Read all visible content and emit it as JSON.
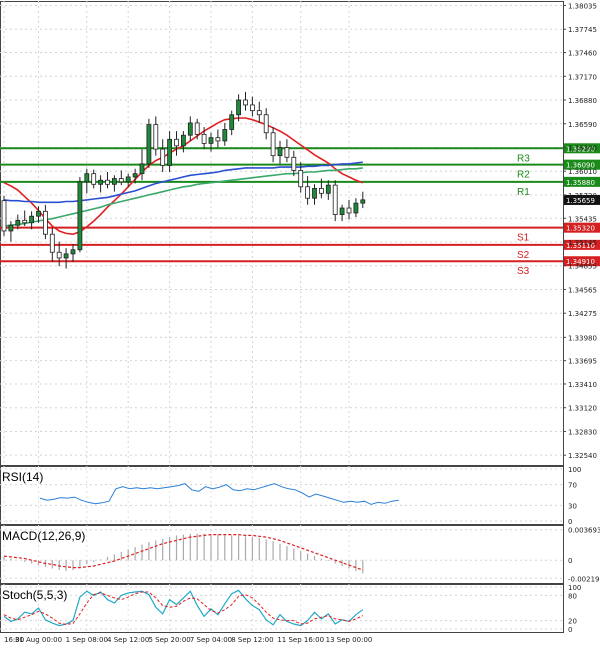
{
  "chart_data": {
    "type": "candlestick",
    "price_axis": {
      "ticks": [
        "1.38035",
        "1.37745",
        "1.37460",
        "1.37170",
        "1.36880",
        "1.36590",
        "1.36300",
        "1.36010",
        "1.35720",
        "1.35435",
        "1.35145",
        "1.34855",
        "1.34565",
        "1.34275",
        "1.33980",
        "1.33695",
        "1.33410",
        "1.33120",
        "1.32830",
        "1.32540"
      ],
      "range": [
        1.3242,
        1.3809
      ]
    },
    "current_price": "1.35659",
    "levels": [
      {
        "name": "R3",
        "price": 1.3629,
        "label": "1.36290",
        "color": "#1a8a1a"
      },
      {
        "name": "R2",
        "price": 1.3609,
        "label": "1.36090",
        "color": "#1a8a1a"
      },
      {
        "name": "R1",
        "price": 1.3588,
        "label": "1.35880",
        "color": "#1a8a1a"
      },
      {
        "name": "S1",
        "price": 1.3532,
        "label": "1.35320",
        "color": "#d42020"
      },
      {
        "name": "S2",
        "price": 1.3511,
        "label": "1.35110",
        "color": "#d42020"
      },
      {
        "name": "S3",
        "price": 1.3491,
        "label": "1.34910",
        "color": "#d42020"
      }
    ],
    "x_ticks": [
      "16:00",
      "31 Aug 00:00",
      "1 Sep 08:00",
      "4 Sep 12:00",
      "5 Sep 20:00",
      "7 Sep 04:00",
      "8 Sep 12:00",
      "11 Sep 16:00",
      "13 Sep 00:00"
    ],
    "candles": [
      [
        1.3565,
        1.3571,
        1.3522,
        1.3528
      ],
      [
        1.3528,
        1.354,
        1.3515,
        1.3535
      ],
      [
        1.3535,
        1.3548,
        1.353,
        1.3541
      ],
      [
        1.3541,
        1.3553,
        1.3534,
        1.3538
      ],
      [
        1.3538,
        1.3552,
        1.353,
        1.3546
      ],
      [
        1.3546,
        1.3558,
        1.3538,
        1.3552
      ],
      [
        1.3552,
        1.356,
        1.3518,
        1.3524
      ],
      [
        1.3524,
        1.3532,
        1.349,
        1.3502
      ],
      [
        1.3502,
        1.3515,
        1.3485,
        1.3495
      ],
      [
        1.3495,
        1.3507,
        1.3482,
        1.35
      ],
      [
        1.35,
        1.3512,
        1.349,
        1.3505
      ],
      [
        1.3505,
        1.3594,
        1.3502,
        1.3588
      ],
      [
        1.3588,
        1.3604,
        1.3574,
        1.3598
      ],
      [
        1.3598,
        1.3603,
        1.358,
        1.3585
      ],
      [
        1.3585,
        1.3596,
        1.3575,
        1.359
      ],
      [
        1.359,
        1.36,
        1.358,
        1.3585
      ],
      [
        1.3585,
        1.3596,
        1.3576,
        1.3592
      ],
      [
        1.3592,
        1.3602,
        1.3584,
        1.3588
      ],
      [
        1.3588,
        1.3598,
        1.3582,
        1.3594
      ],
      [
        1.3594,
        1.3604,
        1.3586,
        1.3598
      ],
      [
        1.3598,
        1.3628,
        1.359,
        1.361
      ],
      [
        1.361,
        1.3665,
        1.3605,
        1.3658
      ],
      [
        1.3658,
        1.3668,
        1.362,
        1.3628
      ],
      [
        1.3628,
        1.364,
        1.36,
        1.3608
      ],
      [
        1.3608,
        1.365,
        1.36,
        1.364
      ],
      [
        1.364,
        1.365,
        1.362,
        1.3632
      ],
      [
        1.3632,
        1.365,
        1.3624,
        1.3645
      ],
      [
        1.3645,
        1.3668,
        1.3638,
        1.366
      ],
      [
        1.366,
        1.3665,
        1.364,
        1.3646
      ],
      [
        1.3646,
        1.3655,
        1.3628,
        1.3635
      ],
      [
        1.3635,
        1.3648,
        1.3625,
        1.3642
      ],
      [
        1.3642,
        1.3652,
        1.363,
        1.3638
      ],
      [
        1.3638,
        1.366,
        1.3632,
        1.3652
      ],
      [
        1.3652,
        1.3675,
        1.3645,
        1.367
      ],
      [
        1.367,
        1.3695,
        1.3662,
        1.3688
      ],
      [
        1.3688,
        1.3698,
        1.3675,
        1.3682
      ],
      [
        1.3682,
        1.3692,
        1.3668,
        1.3675
      ],
      [
        1.3675,
        1.3686,
        1.366,
        1.367
      ],
      [
        1.367,
        1.3678,
        1.364,
        1.3648
      ],
      [
        1.3648,
        1.3655,
        1.3612,
        1.362
      ],
      [
        1.362,
        1.3638,
        1.361,
        1.363
      ],
      [
        1.363,
        1.364,
        1.3612,
        1.3618
      ],
      [
        1.3618,
        1.3626,
        1.3595,
        1.3602
      ],
      [
        1.3602,
        1.3612,
        1.3575,
        1.3582
      ],
      [
        1.3582,
        1.3595,
        1.356,
        1.3568
      ],
      [
        1.3568,
        1.3585,
        1.356,
        1.358
      ],
      [
        1.358,
        1.3592,
        1.3568,
        1.3574
      ],
      [
        1.3574,
        1.359,
        1.3566,
        1.3584
      ],
      [
        1.3584,
        1.359,
        1.354,
        1.3548
      ],
      [
        1.3548,
        1.356,
        1.354,
        1.3556
      ],
      [
        1.3556,
        1.3566,
        1.3542,
        1.355
      ],
      [
        1.355,
        1.3568,
        1.3545,
        1.3562
      ],
      [
        1.3562,
        1.3576,
        1.3556,
        1.3566
      ]
    ],
    "ma_series": [
      {
        "color": "#e02020",
        "values": [
          1.3587,
          1.3583,
          1.3578,
          1.357,
          1.3562,
          1.3553,
          1.3543,
          1.3534,
          1.3528,
          1.3525,
          1.3524,
          1.3527,
          1.3533,
          1.354,
          1.3548,
          1.3557,
          1.3565,
          1.3573,
          1.3582,
          1.3591,
          1.36,
          1.3608,
          1.3614,
          1.3618,
          1.3623,
          1.3628,
          1.3632,
          1.3638,
          1.3644,
          1.365,
          1.3655,
          1.366,
          1.3664,
          1.3665,
          1.3666,
          1.3666,
          1.3664,
          1.3661,
          1.3658,
          1.3654,
          1.365,
          1.3645,
          1.3639,
          1.3633,
          1.3627,
          1.3621,
          1.3616,
          1.3611,
          1.3604,
          1.3598,
          1.3594,
          1.359,
          1.3587
        ]
      },
      {
        "color": "#2a4fd0",
        "values": [
          1.3566,
          1.3565,
          1.3565,
          1.3564,
          1.3564,
          1.3563,
          1.3563,
          1.3563,
          1.3563,
          1.3564,
          1.3564,
          1.3565,
          1.3566,
          1.3567,
          1.3568,
          1.3569,
          1.3571,
          1.3573,
          1.3575,
          1.3577,
          1.358,
          1.3583,
          1.3586,
          1.3588,
          1.359,
          1.3592,
          1.3594,
          1.3596,
          1.3597,
          1.3598,
          1.3599,
          1.36,
          1.3602,
          1.3603,
          1.3604,
          1.3605,
          1.3605,
          1.3605,
          1.3605,
          1.3605,
          1.3606,
          1.3606,
          1.3606,
          1.3606,
          1.3607,
          1.3607,
          1.3608,
          1.3608,
          1.3609,
          1.361,
          1.361,
          1.3611,
          1.3612
        ]
      },
      {
        "color": "#3aa86a",
        "values": [
          1.3534,
          1.3535,
          1.3536,
          1.3537,
          1.3539,
          1.354,
          1.3542,
          1.3543,
          1.3545,
          1.3547,
          1.3549,
          1.3551,
          1.3553,
          1.3555,
          1.3557,
          1.356,
          1.3562,
          1.3564,
          1.3566,
          1.3568,
          1.357,
          1.3572,
          1.3574,
          1.3576,
          1.3578,
          1.358,
          1.3582,
          1.3583,
          1.3585,
          1.3586,
          1.3587,
          1.3588,
          1.3589,
          1.359,
          1.3591,
          1.3592,
          1.3593,
          1.3594,
          1.3595,
          1.3596,
          1.3597,
          1.3598,
          1.3598,
          1.3599,
          1.36,
          1.36,
          1.3601,
          1.3602,
          1.3602,
          1.3603,
          1.3604,
          1.3604,
          1.3605
        ]
      }
    ],
    "rsi": {
      "label": "RSI(14)",
      "ticks": [
        "100",
        "70",
        "30",
        "0"
      ],
      "range": [
        0,
        100
      ],
      "values": [
        44,
        40,
        42,
        45,
        44,
        46,
        40,
        36,
        33,
        35,
        38,
        62,
        66,
        62,
        64,
        62,
        64,
        62,
        64,
        66,
        68,
        72,
        60,
        57,
        66,
        62,
        65,
        70,
        60,
        58,
        62,
        60,
        64,
        68,
        72,
        66,
        62,
        60,
        54,
        46,
        52,
        48,
        44,
        40,
        36,
        38,
        36,
        38,
        32,
        36,
        34,
        38,
        40
      ]
    },
    "macd": {
      "label": "MACD(12,26,9)",
      "ticks": [
        "0.003693",
        "0",
        "-0.002194"
      ],
      "range": [
        -0.0024,
        0.0039
      ],
      "values": [
        0.0004,
        0.0002,
        0.0,
        -0.0002,
        -0.0004,
        -0.0006,
        -0.0008,
        -0.001,
        -0.0012,
        -0.0013,
        -0.0012,
        -0.0008,
        -0.0005,
        -0.0002,
        0.0001,
        0.0004,
        0.0007,
        0.001,
        0.0013,
        0.0016,
        0.0019,
        0.0022,
        0.0024,
        0.0026,
        0.0028,
        0.003,
        0.0031,
        0.0032,
        0.0032,
        0.0032,
        0.0031,
        0.0031,
        0.003,
        0.003,
        0.003,
        0.0029,
        0.0028,
        0.0027,
        0.0025,
        0.0023,
        0.002,
        0.0017,
        0.0014,
        0.0011,
        0.0008,
        0.0005,
        0.0002,
        -0.0001,
        -0.0004,
        -0.0007,
        -0.001,
        -0.0013,
        -0.0016
      ],
      "signal": [
        0.0005,
        0.0004,
        0.0003,
        0.0002,
        0.0,
        -0.0002,
        -0.0004,
        -0.0005,
        -0.0007,
        -0.0008,
        -0.0009,
        -0.0009,
        -0.0008,
        -0.0007,
        -0.0005,
        -0.0003,
        -0.0001,
        0.0002,
        0.0005,
        0.0008,
        0.0011,
        0.0014,
        0.0017,
        0.002,
        0.0022,
        0.0024,
        0.0026,
        0.0028,
        0.0029,
        0.003,
        0.0031,
        0.0031,
        0.0031,
        0.0031,
        0.0031,
        0.003,
        0.003,
        0.0029,
        0.0028,
        0.0026,
        0.0024,
        0.0021,
        0.0018,
        0.0015,
        0.0012,
        0.0009,
        0.0006,
        0.0003,
        0.0,
        -0.0003,
        -0.0006,
        -0.0009,
        -0.0012
      ]
    },
    "stoch": {
      "label": "Stoch(5,5,3)",
      "ticks": [
        "100",
        "80",
        "20",
        "0"
      ],
      "range": [
        0,
        100
      ],
      "k": [
        30,
        18,
        24,
        40,
        36,
        50,
        22,
        14,
        8,
        12,
        20,
        76,
        90,
        80,
        88,
        70,
        62,
        80,
        86,
        88,
        90,
        82,
        52,
        36,
        70,
        58,
        74,
        90,
        56,
        30,
        48,
        34,
        60,
        84,
        92,
        72,
        56,
        46,
        22,
        10,
        34,
        18,
        12,
        8,
        20,
        40,
        24,
        36,
        12,
        22,
        18,
        34,
        46
      ],
      "d": [
        34,
        26,
        22,
        28,
        34,
        42,
        36,
        26,
        14,
        11,
        13,
        36,
        62,
        82,
        86,
        80,
        74,
        70,
        76,
        84,
        88,
        88,
        74,
        56,
        52,
        54,
        66,
        74,
        72,
        58,
        44,
        38,
        46,
        58,
        78,
        82,
        74,
        58,
        40,
        26,
        22,
        20,
        20,
        12,
        14,
        24,
        28,
        32,
        24,
        22,
        18,
        24,
        32
      ]
    }
  }
}
